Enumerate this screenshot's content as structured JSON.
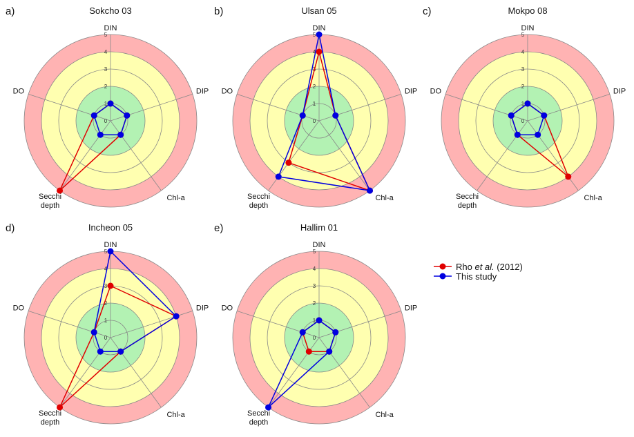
{
  "chart_data": [
    {
      "type": "radar",
      "panel": "a)",
      "title": "Sokcho 03",
      "axes": [
        "DIN",
        "DIP",
        "Chl-a",
        "Secchi depth",
        "DO"
      ],
      "rlim": [
        0,
        5
      ],
      "ticks": [
        "0",
        "1",
        "2",
        "3",
        "4",
        "5"
      ],
      "series": [
        {
          "name": "Rho et al. (2012)",
          "values": [
            1,
            1,
            1,
            5,
            1
          ]
        },
        {
          "name": "This study",
          "values": [
            1,
            1,
            1,
            1,
            1
          ]
        }
      ]
    },
    {
      "type": "radar",
      "panel": "b)",
      "title": "Ulsan 05",
      "axes": [
        "DIN",
        "DIP",
        "Chl-a",
        "Secchi depth",
        "DO"
      ],
      "rlim": [
        0,
        5
      ],
      "ticks": [
        "0",
        "1",
        "2",
        "3",
        "4",
        "5"
      ],
      "series": [
        {
          "name": "Rho et al. (2012)",
          "values": [
            4,
            1,
            5,
            3,
            1
          ]
        },
        {
          "name": "This study",
          "values": [
            5,
            1,
            5,
            4,
            1
          ]
        }
      ]
    },
    {
      "type": "radar",
      "panel": "c)",
      "title": "Mokpo 08",
      "axes": [
        "DIN",
        "DIP",
        "Chl-a",
        "Secchi depth",
        "DO"
      ],
      "rlim": [
        0,
        5
      ],
      "ticks": [
        "0",
        "1",
        "2",
        "3",
        "4",
        "5"
      ],
      "series": [
        {
          "name": "Rho et al. (2012)",
          "values": [
            1,
            1,
            4,
            1,
            1
          ]
        },
        {
          "name": "This study",
          "values": [
            1,
            1,
            1,
            1,
            1
          ]
        }
      ]
    },
    {
      "type": "radar",
      "panel": "d)",
      "title": "Incheon 05",
      "axes": [
        "DIN",
        "DIP",
        "Chl-a",
        "Secchi depth",
        "DO"
      ],
      "rlim": [
        0,
        5
      ],
      "ticks": [
        "0",
        "1",
        "2",
        "3",
        "4",
        "5"
      ],
      "series": [
        {
          "name": "Rho et al. (2012)",
          "values": [
            3,
            4,
            1,
            5,
            1
          ]
        },
        {
          "name": "This study",
          "values": [
            5,
            4,
            1,
            1,
            1
          ]
        }
      ]
    },
    {
      "type": "radar",
      "panel": "e)",
      "title": "Hallim 01",
      "axes": [
        "DIN",
        "DIP",
        "Chl-a",
        "Secchi depth",
        "DO"
      ],
      "rlim": [
        0,
        5
      ],
      "ticks": [
        "0",
        "1",
        "2",
        "3",
        "4",
        "5"
      ],
      "series": [
        {
          "name": "Rho et al. (2012)",
          "values": [
            1,
            1,
            1,
            1,
            1
          ]
        },
        {
          "name": "This study",
          "values": [
            1,
            1,
            1,
            5,
            1
          ]
        }
      ]
    }
  ],
  "zones": [
    {
      "from": 0,
      "to": 2,
      "color": "#b3f2b3"
    },
    {
      "from": 2,
      "to": 4,
      "color": "#ffffb0"
    },
    {
      "from": 4,
      "to": 5,
      "color": "#ffb3b3"
    }
  ],
  "legend": {
    "entries": [
      {
        "prefix": "Rho ",
        "italic": "et al.",
        "suffix": " (2012)",
        "color": "#e00000"
      },
      {
        "prefix": "This study",
        "italic": "",
        "suffix": "",
        "color": "#0000e0"
      }
    ]
  },
  "colors": {
    "rho": "#e00000",
    "this_study": "#0000e0",
    "grid": "#888888"
  }
}
